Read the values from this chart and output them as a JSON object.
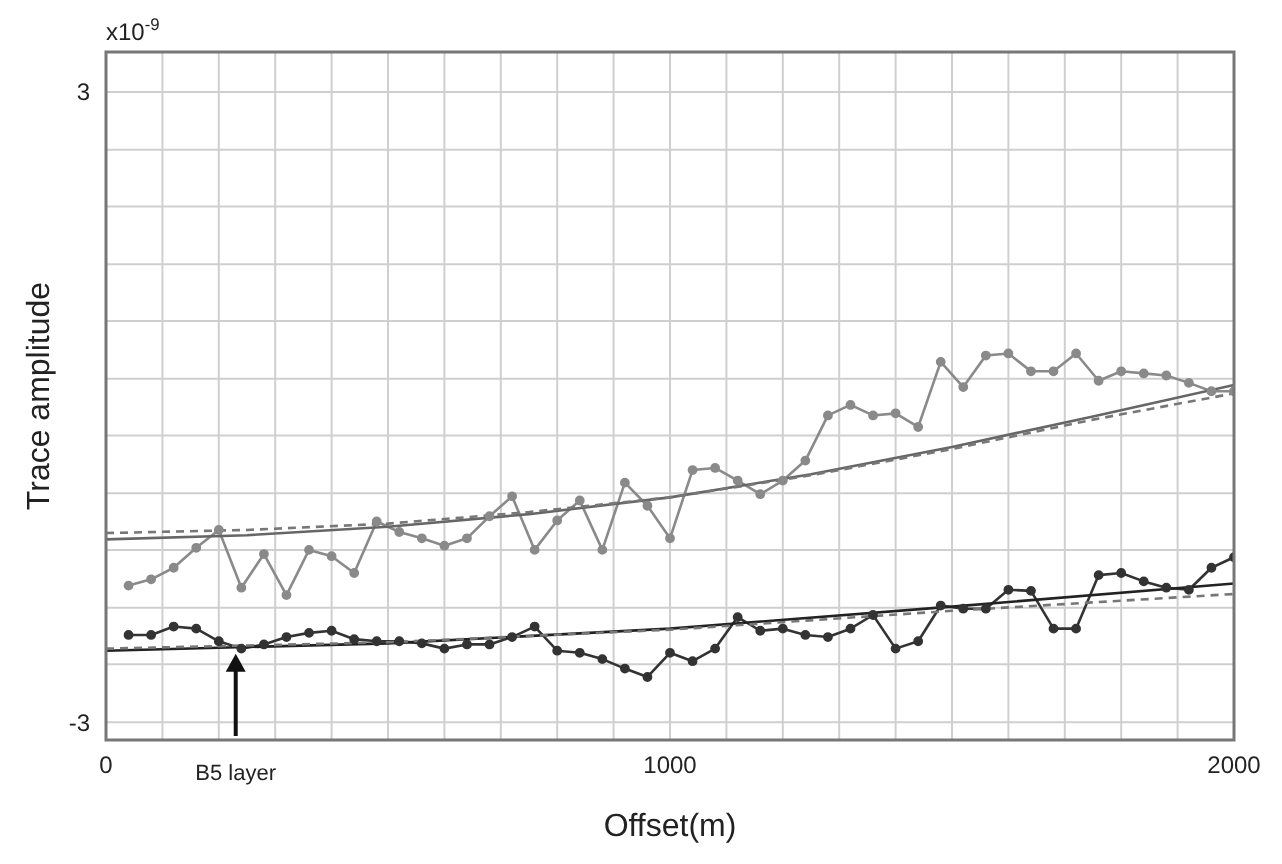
{
  "chart_data": {
    "type": "line",
    "xlabel": "Offset(m)",
    "ylabel": "Trace amplitude",
    "annotations": [
      "x10$^{-9}$",
      {
        "text": "B5 layer",
        "x": 230,
        "y": -2.35
      }
    ],
    "xlim": [
      0,
      2000
    ],
    "ylim": [
      -3.17,
      3.38
    ],
    "xticks": [
      0,
      {
        "value": 100,
        "label": null
      },
      {
        "value": 200,
        "label": null
      },
      {
        "value": 300,
        "label": null
      },
      {
        "value": 400,
        "label": null
      },
      {
        "value": 500,
        "label": null
      },
      {
        "value": 600,
        "label": null
      },
      {
        "value": 700,
        "label": null
      },
      {
        "value": 800,
        "label": null
      },
      {
        "value": 900,
        "label": null
      },
      1000,
      {
        "value": 1100,
        "label": null
      },
      {
        "value": 1200,
        "label": null
      },
      {
        "value": 1300,
        "label": null
      },
      {
        "value": 1400,
        "label": null
      },
      {
        "value": 1500,
        "label": null
      },
      {
        "value": 1600,
        "label": null
      },
      {
        "value": 1700,
        "label": null
      },
      {
        "value": 1800,
        "label": null
      },
      {
        "value": 1900,
        "label": null
      },
      2000
    ],
    "yticks": [
      -3,
      {
        "value": -2.45,
        "label": null
      },
      {
        "value": -1.91,
        "label": null
      },
      {
        "value": -1.36,
        "label": null
      },
      {
        "value": -0.82,
        "label": null
      },
      {
        "value": -0.27,
        "label": null
      },
      {
        "value": 0.27,
        "label": null
      },
      {
        "value": 0.82,
        "label": null
      },
      {
        "value": 1.36,
        "label": null
      },
      {
        "value": 1.91,
        "label": null
      },
      {
        "value": 2.45,
        "label": null
      },
      3
    ],
    "grid": true,
    "series": [
      {
        "color": "#8a8a8a",
        "marker": "circle",
        "line_style": "solid",
        "x": [
          40,
          80,
          120,
          160,
          200,
          240,
          280,
          320,
          360,
          400,
          440,
          480,
          520,
          560,
          600,
          640,
          680,
          720,
          760,
          800,
          840,
          880,
          920,
          960,
          1000,
          1040,
          1080,
          1120,
          1160,
          1200,
          1240,
          1280,
          1320,
          1360,
          1400,
          1440,
          1480,
          1520,
          1560,
          1600,
          1640,
          1680,
          1720,
          1760,
          1800,
          1840,
          1880,
          1920,
          1960,
          2000
        ],
        "values": [
          -1.7,
          -1.64,
          -1.53,
          -1.34,
          -1.17,
          -1.72,
          -1.4,
          -1.79,
          -1.36,
          -1.42,
          -1.58,
          -1.09,
          -1.19,
          -1.25,
          -1.32,
          -1.25,
          -1.04,
          -0.85,
          -1.36,
          -1.08,
          -0.89,
          -1.36,
          -0.72,
          -0.94,
          -1.25,
          -0.6,
          -0.58,
          -0.7,
          -0.83,
          -0.7,
          -0.51,
          -0.08,
          0.02,
          -0.08,
          -0.06,
          -0.19,
          0.43,
          0.19,
          0.49,
          0.51,
          0.34,
          0.34,
          0.51,
          0.25,
          0.34,
          0.32,
          0.3,
          0.23,
          0.15,
          0.15
        ]
      },
      {
        "color": "#666666",
        "marker": "none",
        "line_style": "solid",
        "x": [
          0,
          250,
          500,
          750,
          1000,
          1250,
          1500,
          1750,
          2000
        ],
        "values": [
          -1.26,
          -1.22,
          -1.14,
          -1.02,
          -0.86,
          -0.64,
          -0.38,
          -0.09,
          0.21
        ]
      },
      {
        "color": "#777777",
        "marker": "none",
        "line_style": "dashed",
        "x": [
          0,
          250,
          500,
          750,
          1000,
          1250,
          1500,
          1750,
          2000
        ],
        "values": [
          -1.2,
          -1.17,
          -1.11,
          -1.0,
          -0.86,
          -0.65,
          -0.4,
          -0.12,
          0.13
        ]
      },
      {
        "color": "#333333",
        "marker": "circle",
        "line_style": "solid",
        "x": [
          40,
          80,
          120,
          160,
          200,
          240,
          280,
          320,
          360,
          400,
          440,
          480,
          520,
          560,
          600,
          640,
          680,
          720,
          760,
          800,
          840,
          880,
          920,
          960,
          1000,
          1040,
          1080,
          1120,
          1160,
          1200,
          1240,
          1280,
          1320,
          1360,
          1400,
          1440,
          1480,
          1520,
          1560,
          1600,
          1640,
          1680,
          1720,
          1760,
          1800,
          1840,
          1880,
          1920,
          1960,
          2000
        ],
        "values": [
          -2.17,
          -2.17,
          -2.09,
          -2.11,
          -2.23,
          -2.3,
          -2.26,
          -2.19,
          -2.15,
          -2.13,
          -2.21,
          -2.23,
          -2.23,
          -2.25,
          -2.3,
          -2.26,
          -2.26,
          -2.19,
          -2.09,
          -2.32,
          -2.34,
          -2.4,
          -2.49,
          -2.57,
          -2.34,
          -2.42,
          -2.3,
          -2.0,
          -2.13,
          -2.11,
          -2.17,
          -2.19,
          -2.11,
          -1.98,
          -2.3,
          -2.23,
          -1.89,
          -1.92,
          -1.92,
          -1.74,
          -1.75,
          -2.11,
          -2.11,
          -1.6,
          -1.58,
          -1.66,
          -1.72,
          -1.74,
          -1.53,
          -1.43
        ]
      },
      {
        "color": "#222222",
        "marker": "none",
        "line_style": "solid",
        "x": [
          0,
          500,
          1000,
          1500,
          2000
        ],
        "values": [
          -2.32,
          -2.25,
          -2.11,
          -1.9,
          -1.68
        ]
      },
      {
        "color": "#777777",
        "marker": "none",
        "line_style": "dashed",
        "x": [
          0,
          500,
          1000,
          1500,
          2000
        ],
        "values": [
          -2.3,
          -2.24,
          -2.12,
          -1.94,
          -1.78
        ]
      }
    ]
  }
}
